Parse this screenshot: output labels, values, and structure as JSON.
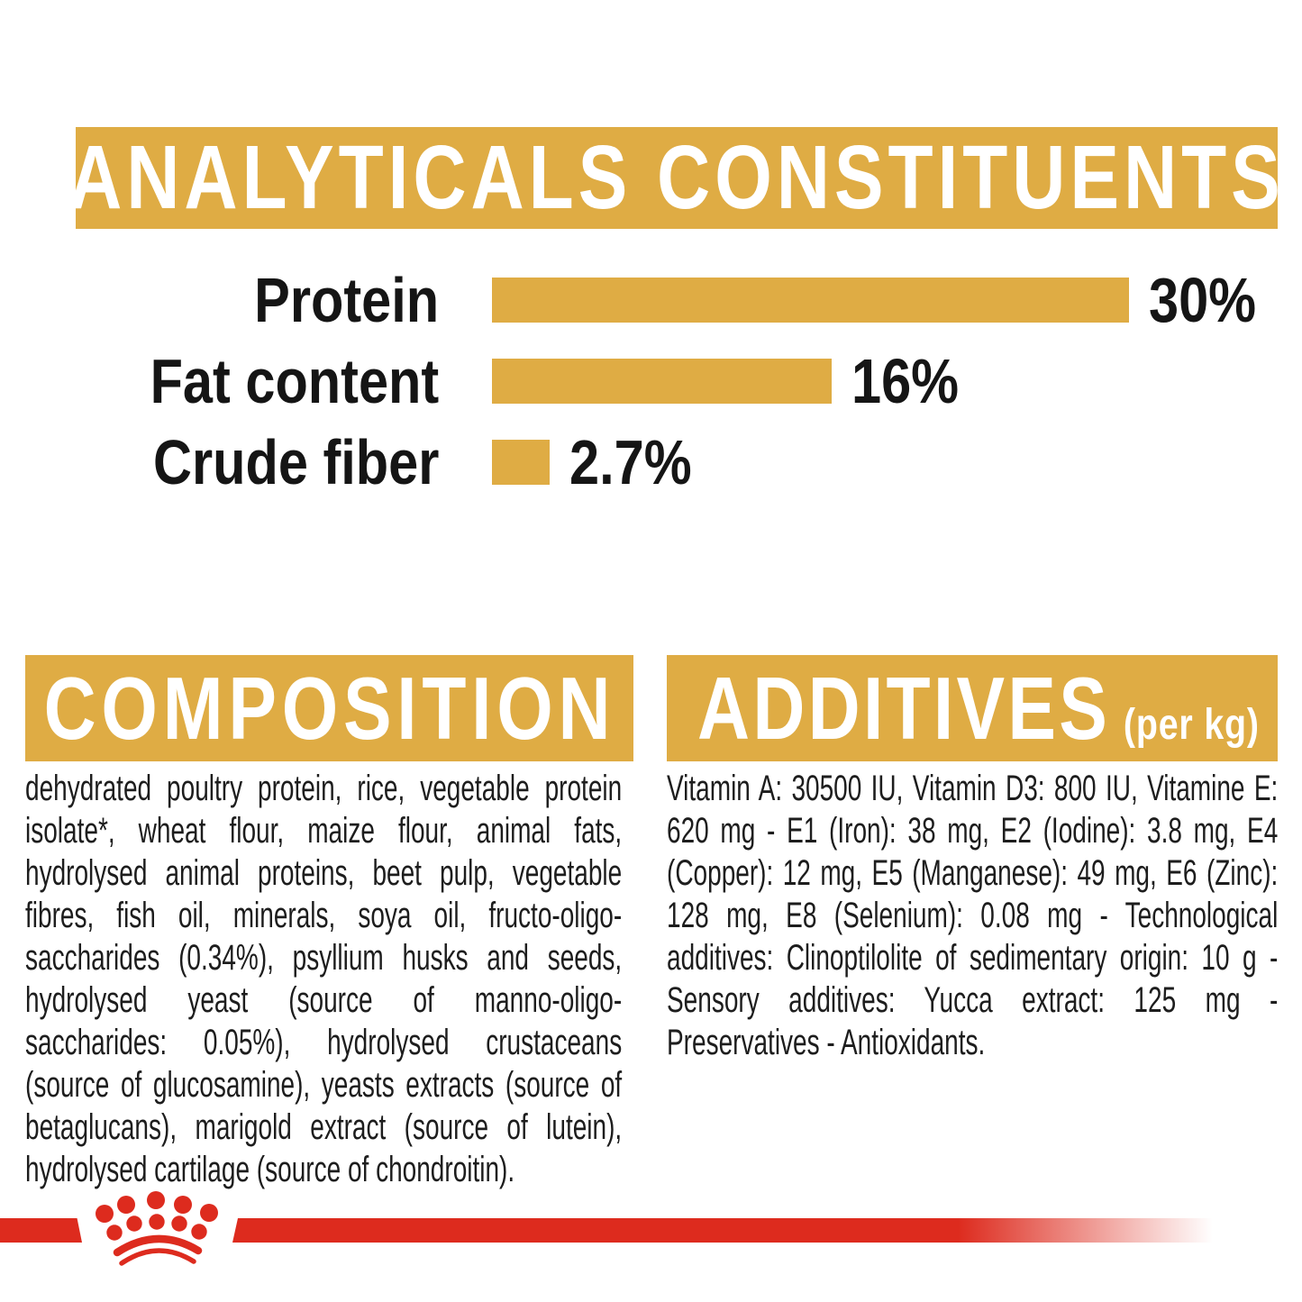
{
  "colors": {
    "gold": "#DFAC44",
    "red": "#DD2B1E",
    "text_dark": "#1d1d1d",
    "banner_text": "#FFFFFF"
  },
  "header": {
    "title": "ANALYTICALS CONSTITUENTS"
  },
  "chart_data": {
    "type": "bar",
    "orientation": "horizontal",
    "title": "ANALYTICALS CONSTITUENTS",
    "categories": [
      "Protein",
      "Fat content",
      "Crude fiber"
    ],
    "values": [
      30,
      16,
      2.7
    ],
    "value_labels": [
      "30%",
      "16%",
      "2.7%"
    ],
    "unit": "%",
    "xlim": [
      0,
      30
    ],
    "grid": false,
    "bar_color": "#DFAC44"
  },
  "composition": {
    "title": "COMPOSITION",
    "text": "dehydrated poultry protein, rice, vegetable protein isolate*, wheat flour, maize flour, animal fats, hydrolysed animal proteins, beet pulp, vegetable fibres, fish oil, minerals, soya oil, fructo-oligo-saccharides (0.34%), psyllium husks and seeds, hydrolysed yeast (source of manno-oligo-saccharides: 0.05%), hydrolysed crustaceans (source of glucosamine), yeasts extracts (source of betaglucans), marigold extract (source of lutein), hydrolysed cartilage (source of chondroitin)."
  },
  "additives": {
    "title": "ADDITIVES",
    "subtitle": "(per kg)",
    "text": "Vitamin A: 30500 IU, Vitamin D3: 800 IU, Vitamine E: 620 mg - E1 (Iron): 38 mg, E2 (Iodine): 3.8 mg, E4 (Copper): 12 mg, E5 (Manganese): 49 mg, E6 (Zinc): 128 mg, E8 (Selenium): 0.08 mg - Technological additives: Clinoptilolite of sedimentary origin: 10 g - Sensory additives: Yucca extract: 125 mg - Preservatives - Antioxidants.",
    "per_kg_values": {
      "vitamin_a_iu": 30500,
      "vitamin_d3_iu": 800,
      "vitamin_e_mg": 620,
      "e1_iron_mg": 38,
      "e2_iodine_mg": 3.8,
      "e4_copper_mg": 12,
      "e5_manganese_mg": 49,
      "e6_zinc_mg": 128,
      "e8_selenium_mg": 0.08,
      "clinoptilolite_g": 10,
      "yucca_extract_mg": 125
    }
  },
  "footer": {
    "logo": "royal-canin-crown"
  }
}
